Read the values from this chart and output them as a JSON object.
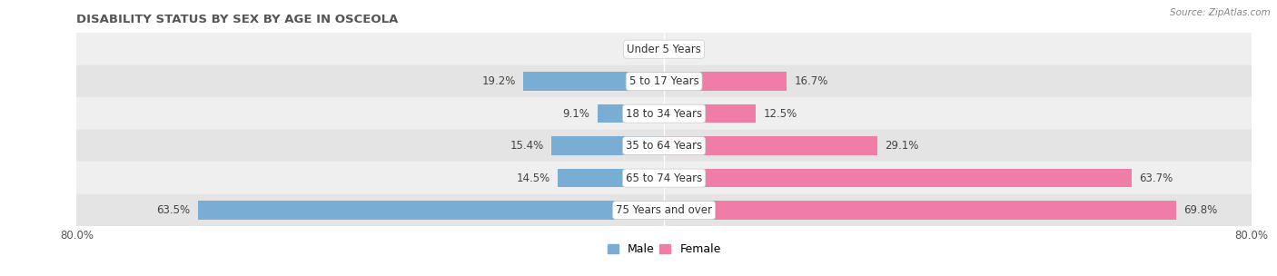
{
  "title": "DISABILITY STATUS BY SEX BY AGE IN OSCEOLA",
  "source": "Source: ZipAtlas.com",
  "categories": [
    "Under 5 Years",
    "5 to 17 Years",
    "18 to 34 Years",
    "35 to 64 Years",
    "65 to 74 Years",
    "75 Years and over"
  ],
  "male_values": [
    0.0,
    19.2,
    9.1,
    15.4,
    14.5,
    63.5
  ],
  "female_values": [
    0.0,
    16.7,
    12.5,
    29.1,
    63.7,
    69.8
  ],
  "male_color": "#7aadd4",
  "female_color": "#f07ca8",
  "row_bg_colors": [
    "#efefef",
    "#e4e4e4"
  ],
  "max_value": 80.0,
  "label_fontsize": 8.5,
  "title_fontsize": 9.5,
  "bar_height": 0.58,
  "male_label": "Male",
  "female_label": "Female"
}
